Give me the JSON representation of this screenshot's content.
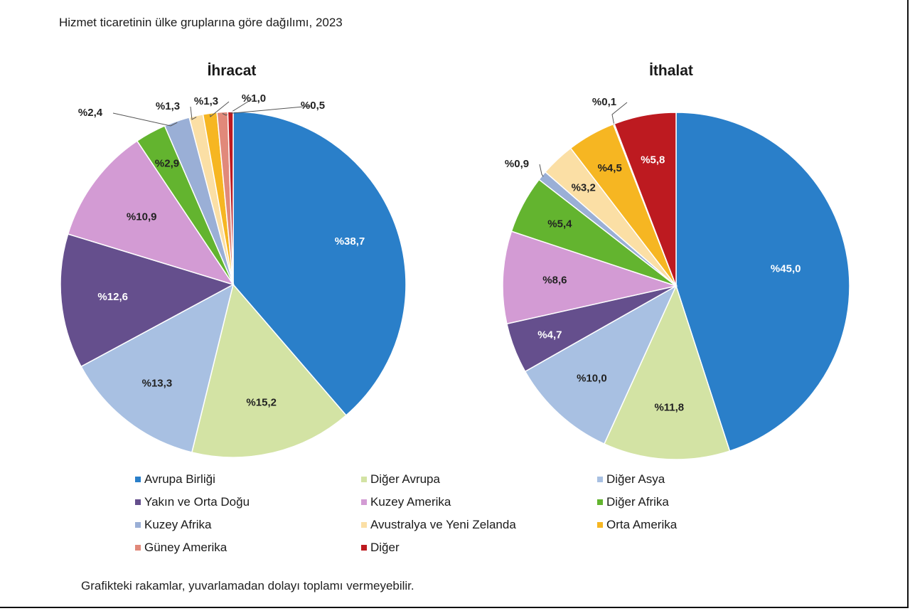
{
  "title": "Hizmet ticaretinin ülke gruplarına göre dağılımı, 2023",
  "footnote": "Grafikteki rakamlar, yuvarlamadan dolayı toplamı vermeyebilir.",
  "legend": [
    {
      "name": "Avrupa Birliği",
      "color": "#2a7fc9"
    },
    {
      "name": "Diğer Avrupa",
      "color": "#d3e3a4"
    },
    {
      "name": "Diğer Asya",
      "color": "#a8c0e2"
    },
    {
      "name": "Yakın ve Orta Doğu",
      "color": "#654f8d"
    },
    {
      "name": "Kuzey Amerika",
      "color": "#d39bd4"
    },
    {
      "name": "Diğer Afrika",
      "color": "#63b42f"
    },
    {
      "name": "Kuzey Afrika",
      "color": "#9aafd6"
    },
    {
      "name": "Avustralya ve Yeni Zelanda",
      "color": "#fbdfa5"
    },
    {
      "name": "Orta Amerika",
      "color": "#f6b622"
    },
    {
      "name": "Güney Amerika",
      "color": "#e1897a"
    },
    {
      "name": "Diğer",
      "color": "#bd1a20"
    }
  ],
  "chart_data": [
    {
      "type": "pie",
      "title": "İhracat",
      "slices": [
        {
          "category": "Avrupa Birliği",
          "value": 38.7,
          "label": "%38,7"
        },
        {
          "category": "Diğer Avrupa",
          "value": 15.2,
          "label": "%15,2"
        },
        {
          "category": "Diğer Asya",
          "value": 13.3,
          "label": "%13,3"
        },
        {
          "category": "Yakın ve Orta Doğu",
          "value": 12.6,
          "label": "%12,6"
        },
        {
          "category": "Kuzey Amerika",
          "value": 10.9,
          "label": "%10,9"
        },
        {
          "category": "Diğer Afrika",
          "value": 2.9,
          "label": "%2,9"
        },
        {
          "category": "Kuzey Afrika",
          "value": 2.4,
          "label": "%2,4"
        },
        {
          "category": "Avustralya ve Yeni Zelanda",
          "value": 1.3,
          "label": "%1,3"
        },
        {
          "category": "Orta Amerika",
          "value": 1.3,
          "label": "%1,3"
        },
        {
          "category": "Güney Amerika",
          "value": 1.0,
          "label": "%1,0"
        },
        {
          "category": "Diğer",
          "value": 0.5,
          "label": "%0,5"
        }
      ]
    },
    {
      "type": "pie",
      "title": "İthalat",
      "slices": [
        {
          "category": "Avrupa Birliği",
          "value": 45.0,
          "label": "%45,0"
        },
        {
          "category": "Diğer Avrupa",
          "value": 11.8,
          "label": "%11,8"
        },
        {
          "category": "Diğer Asya",
          "value": 10.0,
          "label": "%10,0"
        },
        {
          "category": "Yakın ve Orta Doğu",
          "value": 4.7,
          "label": "%4,7"
        },
        {
          "category": "Kuzey Amerika",
          "value": 8.6,
          "label": "%8,6"
        },
        {
          "category": "Diğer Afrika",
          "value": 5.4,
          "label": "%5,4"
        },
        {
          "category": "Kuzey Afrika",
          "value": 0.9,
          "label": "%0,9"
        },
        {
          "category": "Avustralya ve Yeni Zelanda",
          "value": 3.2,
          "label": "%3,2"
        },
        {
          "category": "Orta Amerika",
          "value": 4.5,
          "label": "%4,5"
        },
        {
          "category": "Güney Amerika",
          "value": 0.1,
          "label": "%0,1"
        },
        {
          "category": "Diğer",
          "value": 5.8,
          "label": "%5,8"
        }
      ]
    }
  ]
}
